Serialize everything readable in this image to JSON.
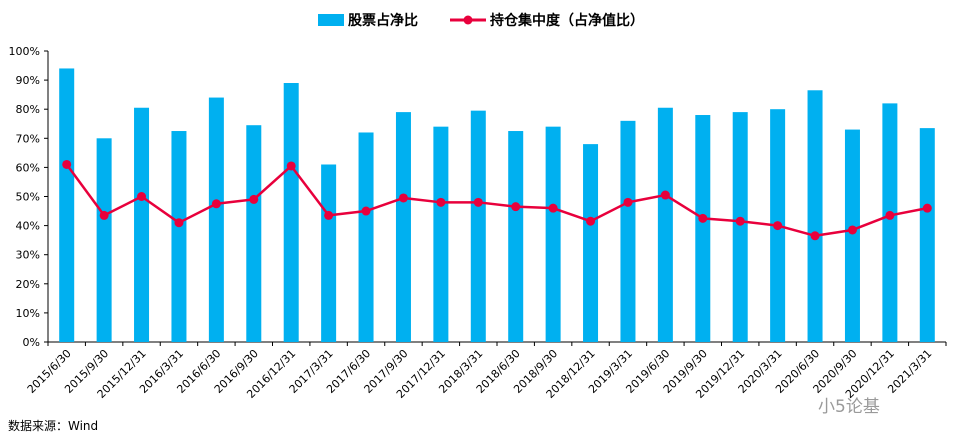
{
  "chart_data": {
    "type": "bar+line",
    "categories": [
      "2015/6/30",
      "2015/9/30",
      "2015/12/31",
      "2016/3/31",
      "2016/6/30",
      "2016/9/30",
      "2016/12/31",
      "2017/3/31",
      "2017/6/30",
      "2017/9/30",
      "2017/12/31",
      "2018/3/31",
      "2018/6/30",
      "2018/9/30",
      "2018/12/31",
      "2019/3/31",
      "2019/6/30",
      "2019/9/30",
      "2019/12/31",
      "2020/3/31",
      "2020/6/30",
      "2020/9/30",
      "2020/12/31",
      "2021/3/31"
    ],
    "series": [
      {
        "name": "股票占净比",
        "type": "bar",
        "color": "#00b0f0",
        "values": [
          94,
          70,
          80.5,
          72.5,
          84,
          74.5,
          89,
          61,
          72,
          79,
          74,
          79.5,
          72.5,
          74,
          68,
          76,
          80.5,
          78,
          79,
          80,
          86.5,
          73,
          82,
          73.5
        ]
      },
      {
        "name": "持仓集中度（占净值比）",
        "type": "line",
        "color": "#e8003c",
        "values": [
          61,
          43.5,
          50,
          41,
          47.5,
          49,
          60.5,
          43.5,
          45,
          49.5,
          48,
          48,
          46.5,
          46,
          41.5,
          48,
          50.5,
          42.5,
          41.5,
          40,
          36.5,
          38.5,
          43.5,
          46
        ]
      }
    ],
    "ylim": [
      0,
      100
    ],
    "yticks": [
      "0%",
      "10%",
      "20%",
      "30%",
      "40%",
      "50%",
      "60%",
      "70%",
      "80%",
      "90%",
      "100%"
    ],
    "legend": "top-center",
    "grid": false
  },
  "footer": {
    "source": "数据来源：Wind",
    "watermark": "小5论基"
  }
}
